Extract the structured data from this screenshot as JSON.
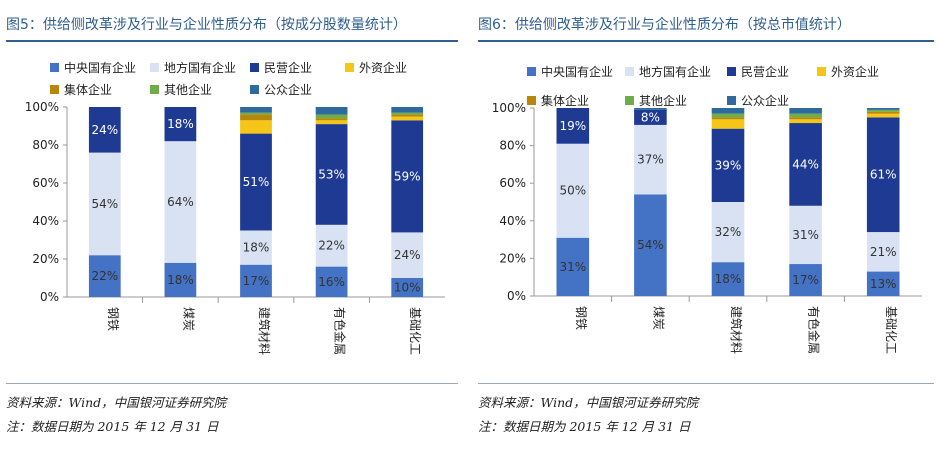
{
  "figures": [
    {
      "title": "图5：供给侧改革涉及行业与企业性质分布（按成分股数量统计）",
      "source": "资料来源：Wind，中国银河证券研究院",
      "note": "注：数据日期为 2015 年 12 月 31 日"
    },
    {
      "title": "图6：供给侧改革涉及行业与企业性质分布（按总市值统计）",
      "source": "资料来源：Wind，中国银河证券研究院",
      "note": "注：数据日期为 2015 年 12 月 31 日"
    }
  ],
  "colors": {
    "title_blue": "#2e5f8f",
    "中央国有企业": "#4472c4",
    "地方国有企业": "#d9e2f3",
    "民营企业": "#1f3a93",
    "外资企业": "#f5c518",
    "集体企业": "#b8860b",
    "其他企业": "#70ad47",
    "公众企业": "#2e6a9e"
  },
  "chart_data": [
    {
      "type": "bar",
      "stacked": true,
      "categories": [
        "钢铁",
        "煤炭",
        "建筑材料",
        "有色金属",
        "基础化工"
      ],
      "ylim": [
        0,
        100
      ],
      "yticks": [
        "0%",
        "20%",
        "40%",
        "60%",
        "80%",
        "100%"
      ],
      "legend_position": "top",
      "series": [
        {
          "name": "中央国有企业",
          "values": [
            22,
            18,
            17,
            16,
            10
          ],
          "labels": [
            "22%",
            "18%",
            "17%",
            "16%",
            "10%"
          ]
        },
        {
          "name": "地方国有企业",
          "values": [
            54,
            64,
            18,
            22,
            24
          ],
          "labels": [
            "54%",
            "64%",
            "18%",
            "22%",
            "24%"
          ]
        },
        {
          "name": "民营企业",
          "values": [
            24,
            18,
            51,
            53,
            59
          ],
          "labels": [
            "24%",
            "18%",
            "51%",
            "53%",
            "59%"
          ]
        },
        {
          "name": "外资企业",
          "values": [
            0,
            0,
            7,
            2,
            2
          ],
          "labels": [
            "",
            "",
            "",
            "",
            ""
          ]
        },
        {
          "name": "集体企业",
          "values": [
            0,
            0,
            3,
            1,
            1
          ],
          "labels": [
            "",
            "",
            "",
            "",
            ""
          ]
        },
        {
          "name": "其他企业",
          "values": [
            0,
            0,
            1,
            2,
            1
          ],
          "labels": [
            "",
            "",
            "",
            "",
            ""
          ]
        },
        {
          "name": "公众企业",
          "values": [
            0,
            0,
            3,
            4,
            3
          ],
          "labels": [
            "",
            "",
            "",
            "",
            ""
          ]
        }
      ]
    },
    {
      "type": "bar",
      "stacked": true,
      "categories": [
        "钢铁",
        "煤炭",
        "建筑材料",
        "有色金属",
        "基础化工"
      ],
      "ylim": [
        0,
        100
      ],
      "yticks": [
        "0%",
        "20%",
        "40%",
        "60%",
        "80%",
        "100%"
      ],
      "legend_position": "top",
      "series": [
        {
          "name": "中央国有企业",
          "values": [
            31,
            54,
            18,
            17,
            13
          ],
          "labels": [
            "31%",
            "54%",
            "18%",
            "17%",
            "13%"
          ]
        },
        {
          "name": "地方国有企业",
          "values": [
            50,
            37,
            32,
            31,
            21
          ],
          "labels": [
            "50%",
            "37%",
            "32%",
            "31%",
            "21%"
          ]
        },
        {
          "name": "民营企业",
          "values": [
            19,
            8,
            39,
            44,
            61
          ],
          "labels": [
            "19%",
            "8%",
            "39%",
            "44%",
            "61%"
          ]
        },
        {
          "name": "外资企业",
          "values": [
            0,
            0,
            5,
            2,
            2
          ],
          "labels": [
            "",
            "",
            "",
            "",
            ""
          ]
        },
        {
          "name": "集体企业",
          "values": [
            0,
            0,
            1,
            1,
            1
          ],
          "labels": [
            "",
            "",
            "",
            "",
            ""
          ]
        },
        {
          "name": "其他企业",
          "values": [
            0,
            0,
            2,
            2,
            1
          ],
          "labels": [
            "",
            "",
            "",
            "",
            ""
          ]
        },
        {
          "name": "公众企业",
          "values": [
            0,
            1,
            3,
            3,
            1
          ],
          "labels": [
            "",
            "",
            "",
            "",
            ""
          ]
        }
      ]
    }
  ]
}
